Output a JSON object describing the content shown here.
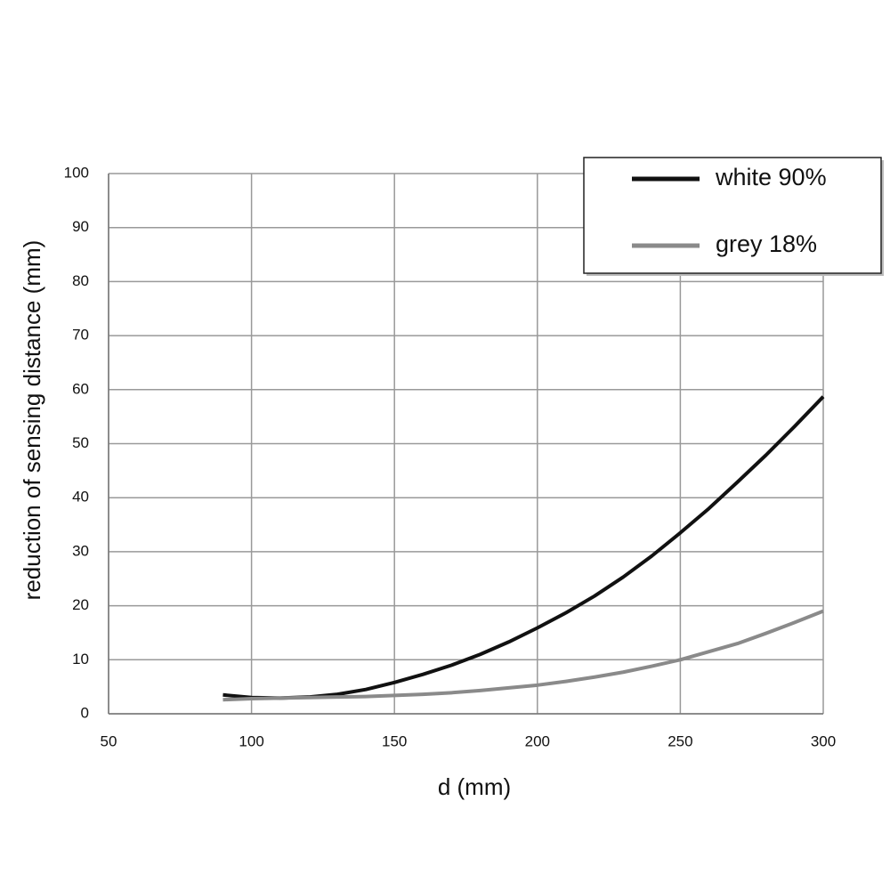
{
  "chart_data": {
    "type": "line",
    "x_label": "d (mm)",
    "y_label": "reduction of sensing distance (mm)",
    "x": [
      90,
      100,
      110,
      120,
      130,
      140,
      150,
      160,
      170,
      180,
      190,
      200,
      210,
      220,
      230,
      240,
      250,
      260,
      270,
      280,
      290,
      300
    ],
    "series": [
      {
        "name": "white 90%",
        "color": "#111111",
        "values": [
          3.5,
          3.0,
          2.9,
          3.1,
          3.6,
          4.5,
          5.8,
          7.3,
          9.0,
          11.0,
          13.3,
          15.9,
          18.7,
          21.8,
          25.3,
          29.2,
          33.5,
          38.0,
          42.9,
          47.9,
          53.2,
          58.7
        ]
      },
      {
        "name": "grey 18%",
        "color": "#8a8a8a",
        "values": [
          2.6,
          2.8,
          2.9,
          3.0,
          3.1,
          3.2,
          3.4,
          3.6,
          3.9,
          4.3,
          4.8,
          5.3,
          6.0,
          6.8,
          7.7,
          8.8,
          10.0,
          11.5,
          13.0,
          14.9,
          16.9,
          19.0
        ]
      }
    ],
    "xlim": [
      50,
      300
    ],
    "xticks": [
      50,
      100,
      150,
      200,
      250,
      300
    ],
    "ylim": [
      0,
      100
    ],
    "yticks": [
      0,
      10,
      20,
      30,
      40,
      50,
      60,
      70,
      80,
      90,
      100
    ],
    "grid": true,
    "legend": "upper-right"
  }
}
